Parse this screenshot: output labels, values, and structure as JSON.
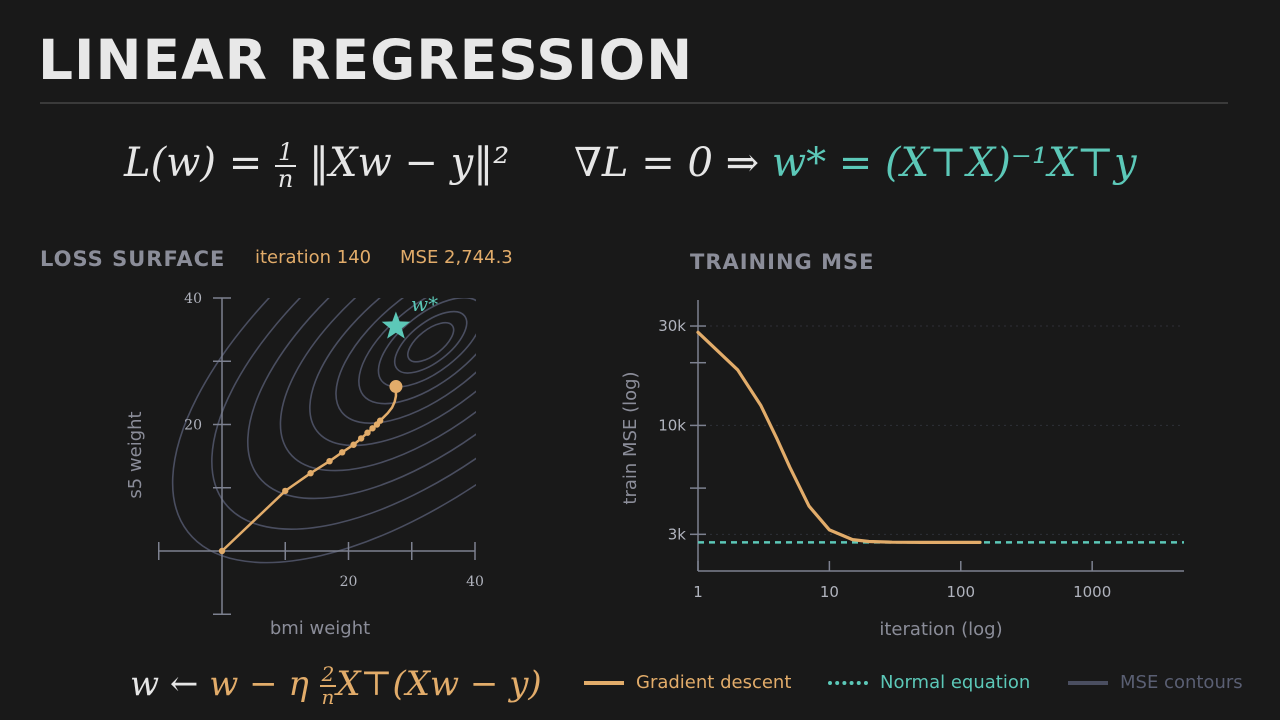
{
  "title": "LINEAR REGRESSION",
  "equations": {
    "loss_lhs": "L(w) = ",
    "loss_frac_num": "1",
    "loss_frac_den": "n",
    "loss_rhs": "‖Xw − y‖²",
    "grad_lhs": "∇L = 0  ⇒  ",
    "grad_rhs": "w* = (X⊤X)⁻¹X⊤y",
    "update_lhs": "w ← ",
    "update_rhs": "w − η ",
    "update_frac_num": "2",
    "update_frac_den": "n",
    "update_tail": "X⊤(Xw − y)"
  },
  "loss_surface": {
    "heading": "LOSS SURFACE",
    "iteration_label": "iteration 140",
    "mse_label": "MSE 2,744.3",
    "xlabel": "bmi weight",
    "ylabel": "s5 weight",
    "optimum_label": "w*",
    "colors": {
      "contour": "#4a4e60",
      "path": "#e2ac6a",
      "optimum": "#5cc8b8"
    }
  },
  "training_mse": {
    "heading": "TRAINING MSE",
    "xlabel": "iteration (log)",
    "ylabel": "train MSE (log)"
  },
  "legend": {
    "gd": "Gradient descent",
    "ne": "Normal equation",
    "contours": "MSE contours"
  },
  "chart_data": [
    {
      "type": "scatter",
      "title": "LOSS SURFACE",
      "xlabel": "bmi weight",
      "ylabel": "s5 weight",
      "xlim": [
        -10,
        40
      ],
      "ylim": [
        -10,
        40
      ],
      "xticks": [
        20,
        40
      ],
      "yticks": [
        20,
        40
      ],
      "optimum": {
        "x": 27.5,
        "y": 35.5
      },
      "contour_center": {
        "x": 33,
        "y": 33
      },
      "series": [
        {
          "name": "Gradient descent",
          "points": [
            [
              0,
              0
            ],
            [
              10,
              9.5
            ],
            [
              14,
              12.3
            ],
            [
              17,
              14.2
            ],
            [
              19,
              15.6
            ],
            [
              20.8,
              16.8
            ],
            [
              22,
              17.8
            ],
            [
              23,
              18.7
            ],
            [
              23.8,
              19.4
            ],
            [
              24.5,
              20
            ],
            [
              25,
              20.6
            ],
            [
              26.2,
              21.8
            ],
            [
              26.9,
              22.7
            ],
            [
              27.3,
              23.6
            ],
            [
              27.5,
              24.5
            ],
            [
              27.5,
              26
            ]
          ],
          "markers": [
            [
              0,
              0
            ],
            [
              10,
              9.5
            ],
            [
              14,
              12.3
            ],
            [
              17,
              14.2
            ],
            [
              19,
              15.6
            ],
            [
              20.8,
              16.8
            ],
            [
              22,
              17.8
            ],
            [
              23,
              18.7
            ],
            [
              23.8,
              19.4
            ],
            [
              24.5,
              20
            ],
            [
              25,
              20.6
            ]
          ],
          "endpoint": [
            27.5,
            26
          ]
        }
      ]
    },
    {
      "type": "line",
      "title": "TRAINING MSE",
      "xlabel": "iteration (log)",
      "ylabel": "train MSE (log)",
      "xscale": "log",
      "yscale": "log",
      "xlim": [
        1,
        5000
      ],
      "ylim": [
        2000,
        40000
      ],
      "xticks": [
        1,
        10,
        100,
        1000
      ],
      "xtick_labels": [
        "1",
        "10",
        "100",
        "1000"
      ],
      "yticks": [
        3000,
        10000,
        30000
      ],
      "ytick_labels": [
        "3k",
        "10k",
        "30k"
      ],
      "grid": true,
      "series": [
        {
          "name": "Gradient descent",
          "x": [
            1,
            2,
            3,
            4,
            5,
            7,
            10,
            15,
            20,
            30,
            50,
            100,
            140
          ],
          "y": [
            28000,
            18500,
            12500,
            8600,
            6300,
            4100,
            3150,
            2830,
            2770,
            2750,
            2745,
            2744.5,
            2744.3
          ]
        },
        {
          "name": "Normal equation",
          "x": [
            1,
            5000
          ],
          "y": [
            2744.3,
            2744.3
          ]
        }
      ]
    }
  ]
}
